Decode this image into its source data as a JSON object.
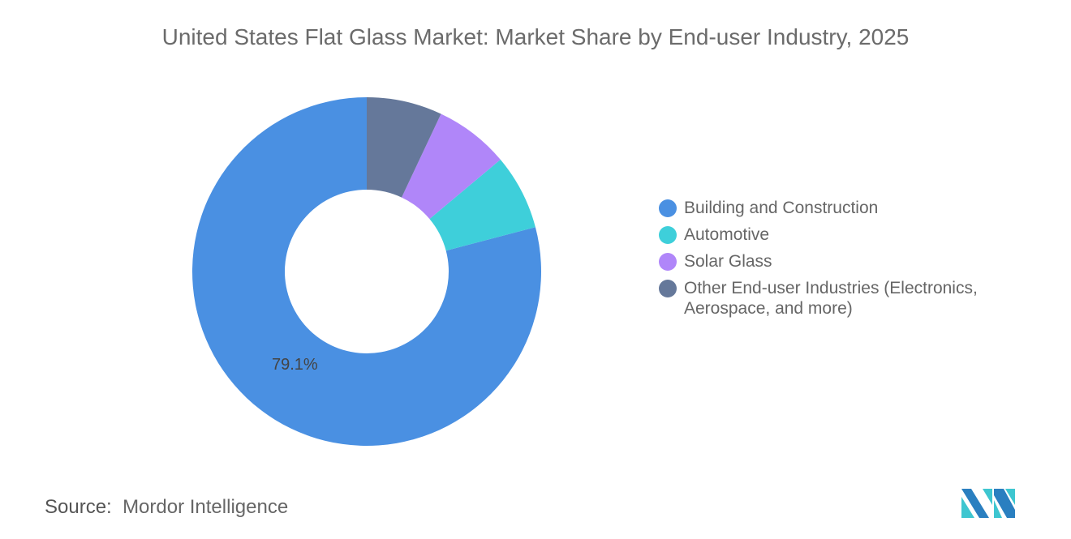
{
  "chart_data": {
    "type": "pie",
    "variant": "donut",
    "title": "United States Flat Glass Market: Market Share by End-user Industry, 2025",
    "categories": [
      "Building and Construction",
      "Automotive",
      "Solar Glass",
      "Other End-user Industries (Electronics, Aerospace, and more)"
    ],
    "values": [
      79.1,
      7.0,
      6.9,
      7.0
    ],
    "data_labels": [
      "79.1%",
      "",
      "",
      ""
    ],
    "colors": [
      "#4a90e2",
      "#3ecfda",
      "#b086f9",
      "#65789a"
    ],
    "legend_position": "right"
  },
  "source": {
    "label": "Source:",
    "value": "Mordor Intelligence"
  }
}
